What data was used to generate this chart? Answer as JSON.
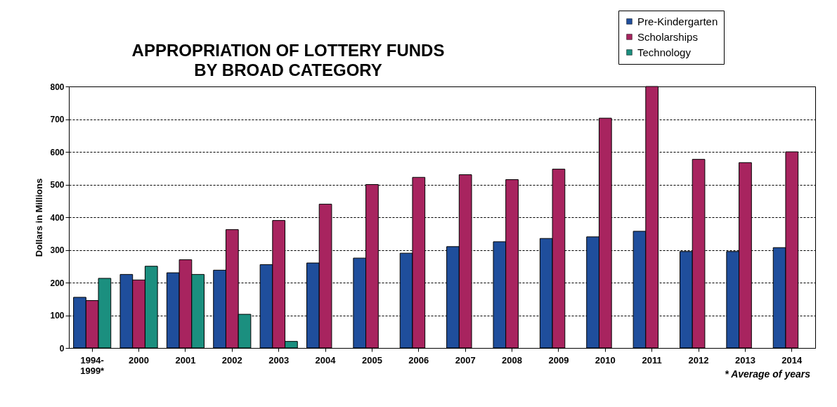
{
  "chart_data": {
    "type": "bar",
    "title": "APPROPRIATION OF LOTTERY FUNDS BY BROAD CATEGORY",
    "ylabel": "Dollars in Millions",
    "categories": [
      "1994-1999*",
      "2000",
      "2001",
      "2002",
      "2003",
      "2004",
      "2005",
      "2006",
      "2007",
      "2008",
      "2009",
      "2010",
      "2011",
      "2012",
      "2013",
      "2014"
    ],
    "series": [
      {
        "name": "Pre-Kindergarten",
        "color": "#1f4e9c",
        "values": [
          155,
          225,
          230,
          238,
          255,
          260,
          275,
          290,
          310,
          325,
          335,
          340,
          357,
          295,
          295,
          307
        ]
      },
      {
        "name": "Scholarships",
        "color": "#a8245f",
        "values": [
          145,
          208,
          270,
          362,
          390,
          440,
          500,
          522,
          530,
          515,
          547,
          703,
          800,
          577,
          567,
          600
        ]
      },
      {
        "name": "Technology",
        "color": "#1b8f7f",
        "values": [
          213,
          250,
          225,
          103,
          20,
          null,
          null,
          null,
          null,
          null,
          null,
          null,
          null,
          null,
          null,
          null
        ]
      }
    ],
    "ylim": [
      0,
      800
    ],
    "yticks": [
      0,
      100,
      200,
      300,
      400,
      500,
      600,
      700,
      800
    ],
    "grid": "y",
    "legend": "top right",
    "annotations": [
      "* Average of years"
    ]
  }
}
